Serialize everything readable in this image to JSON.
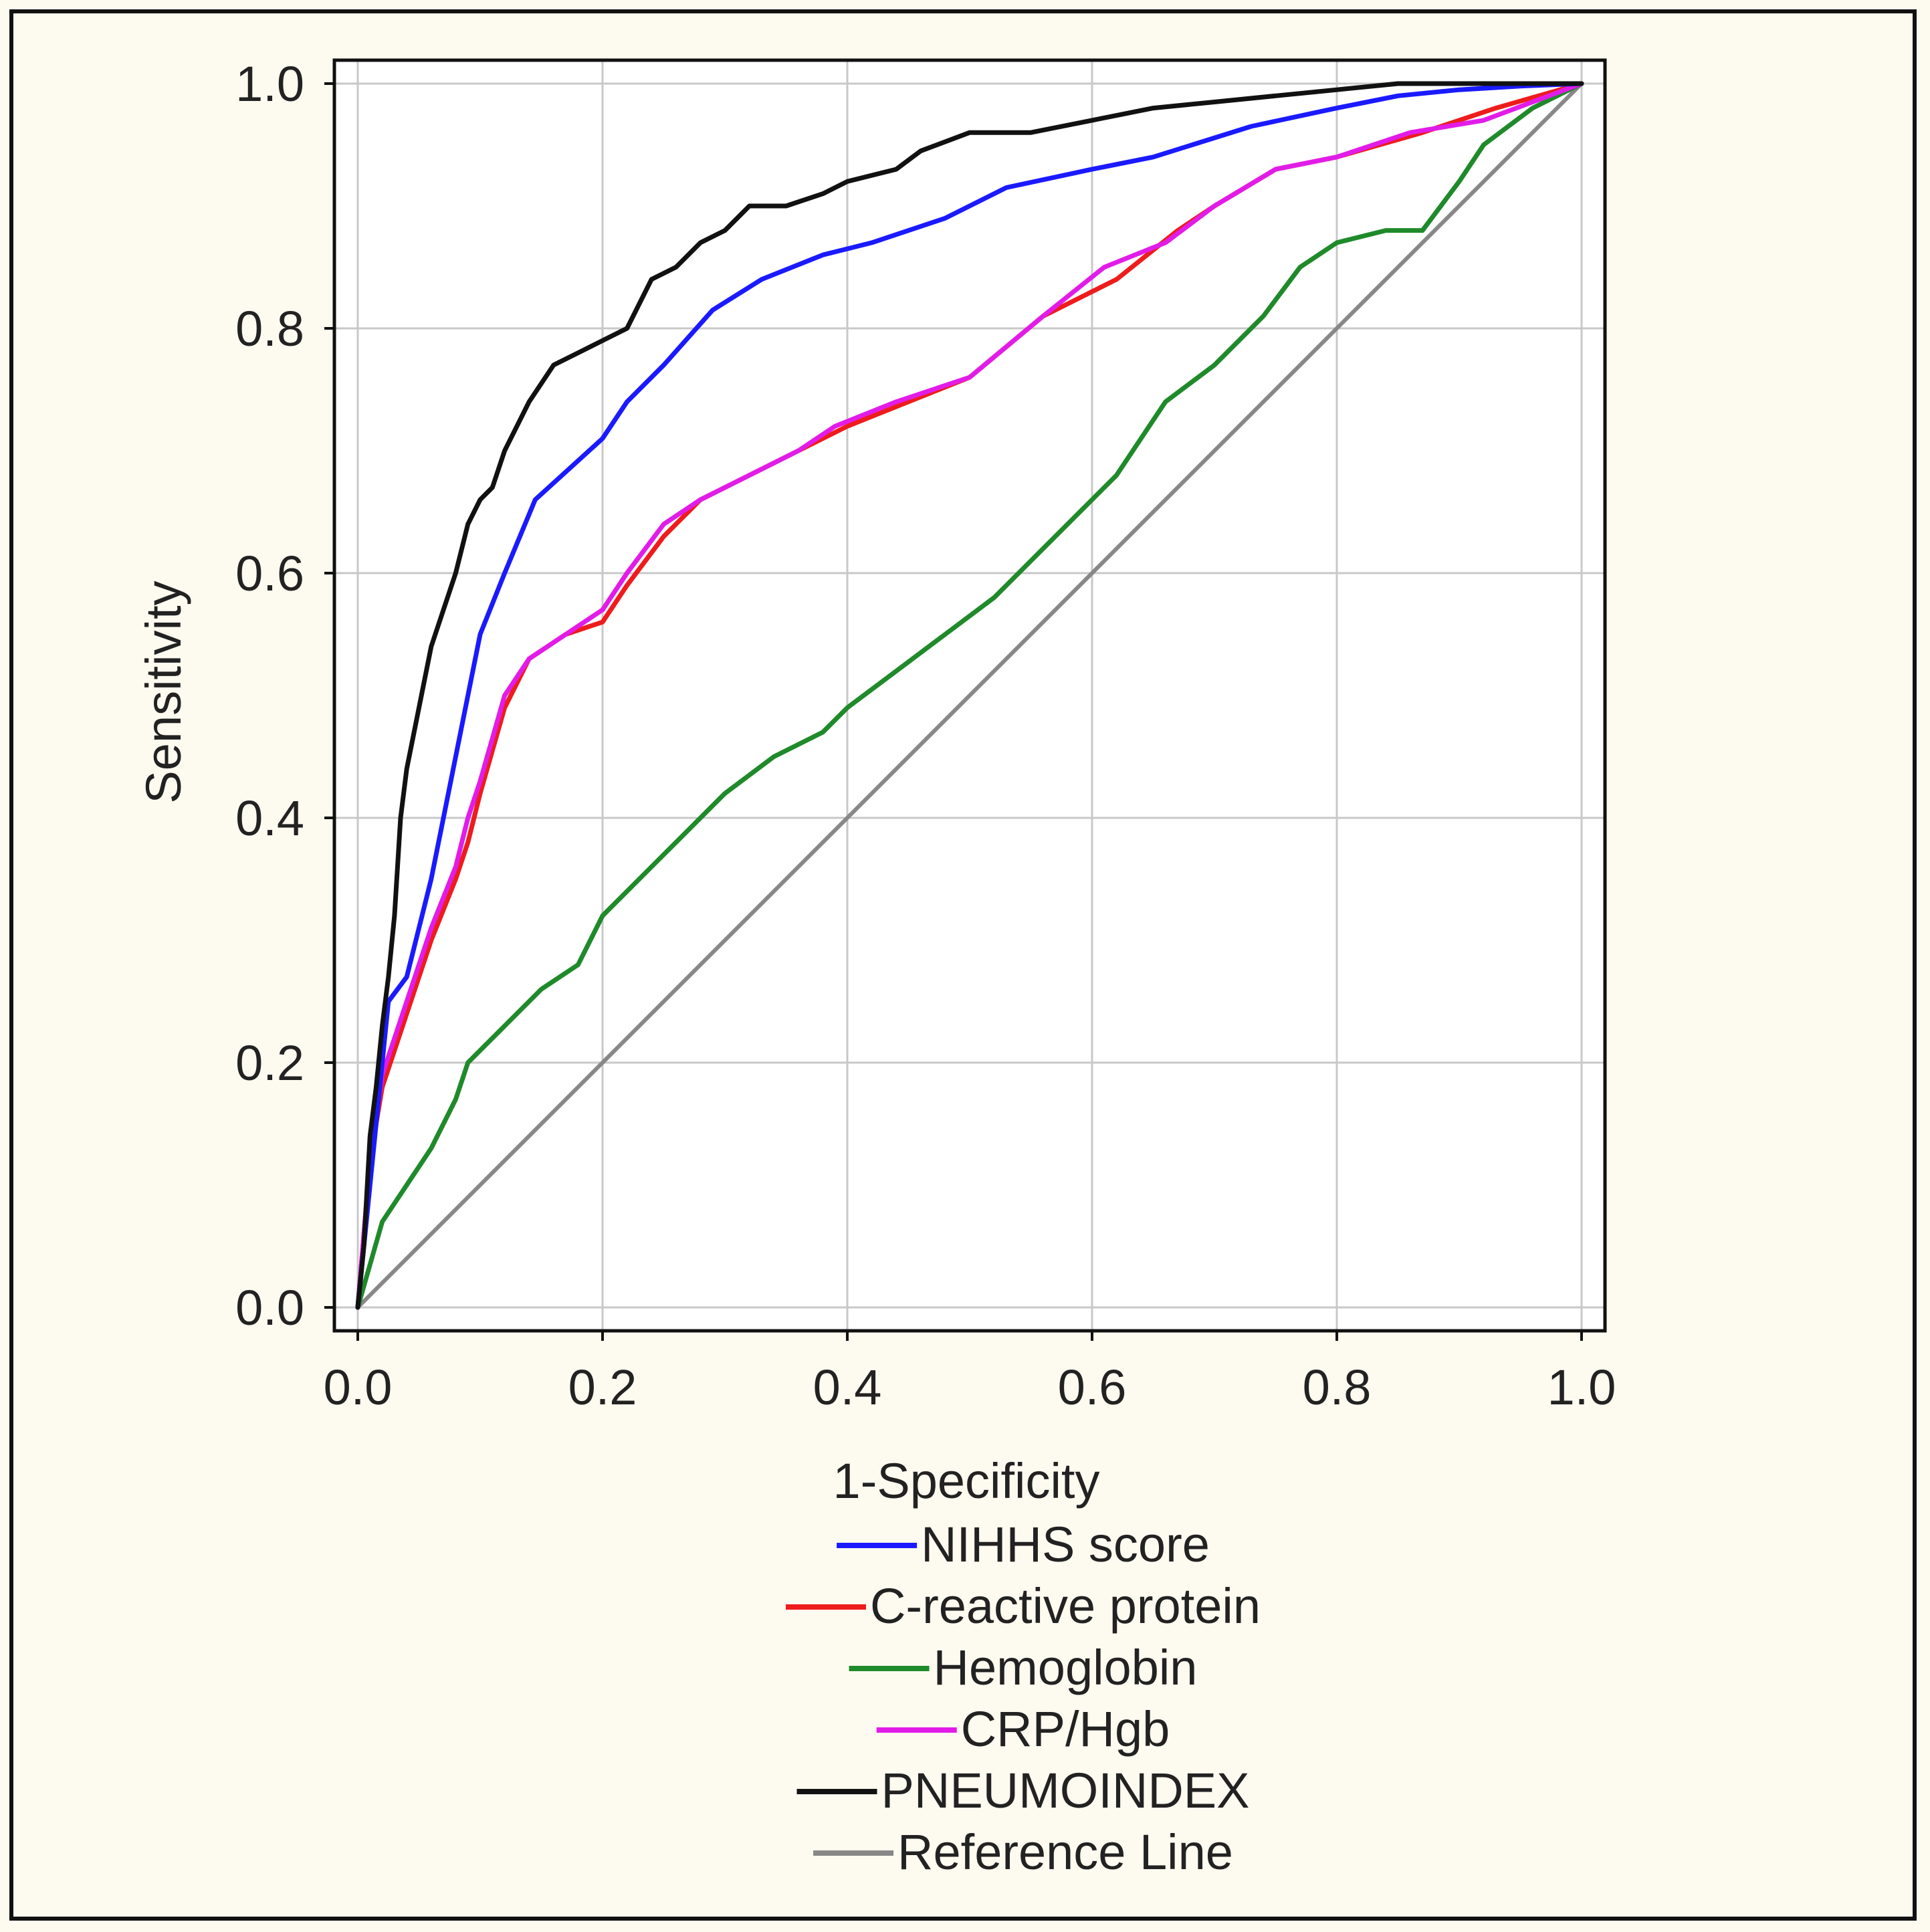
{
  "chart_data": {
    "type": "line",
    "title": "",
    "xlabel": "1-Specificity",
    "ylabel": "Sensitivity",
    "xlim": [
      0,
      1
    ],
    "ylim": [
      0,
      1
    ],
    "xticks": [
      "0.0",
      "0.2",
      "0.4",
      "0.6",
      "0.8",
      "1.0"
    ],
    "yticks": [
      "0.0",
      "0.2",
      "0.4",
      "0.6",
      "0.8",
      "1.0"
    ],
    "grid": true,
    "legend_position": "bottom-center",
    "series": [
      {
        "name": "NIHHS score",
        "color": "#1a1aff",
        "x": [
          0,
          0.01,
          0.02,
          0.025,
          0.04,
          0.06,
          0.08,
          0.1,
          0.12,
          0.145,
          0.2,
          0.22,
          0.25,
          0.29,
          0.33,
          0.38,
          0.42,
          0.48,
          0.53,
          0.6,
          0.65,
          0.73,
          0.8,
          0.85,
          0.9,
          0.95,
          1
        ],
        "y": [
          0,
          0.1,
          0.2,
          0.25,
          0.27,
          0.35,
          0.45,
          0.55,
          0.6,
          0.66,
          0.71,
          0.74,
          0.77,
          0.815,
          0.84,
          0.86,
          0.87,
          0.89,
          0.915,
          0.93,
          0.94,
          0.965,
          0.98,
          0.99,
          0.995,
          0.998,
          1
        ]
      },
      {
        "name": "C-reactive protein",
        "color": "#ee1c1c",
        "x": [
          0,
          0.01,
          0.02,
          0.04,
          0.06,
          0.08,
          0.09,
          0.1,
          0.12,
          0.14,
          0.17,
          0.2,
          0.22,
          0.25,
          0.28,
          0.32,
          0.36,
          0.4,
          0.45,
          0.5,
          0.56,
          0.62,
          0.67,
          0.7,
          0.75,
          0.8,
          0.87,
          0.93,
          1
        ],
        "y": [
          0,
          0.12,
          0.18,
          0.24,
          0.3,
          0.35,
          0.38,
          0.42,
          0.49,
          0.53,
          0.55,
          0.56,
          0.59,
          0.63,
          0.66,
          0.68,
          0.7,
          0.72,
          0.74,
          0.76,
          0.81,
          0.84,
          0.88,
          0.9,
          0.93,
          0.94,
          0.96,
          0.98,
          1
        ]
      },
      {
        "name": "Hemoglobin",
        "color": "#1f8a2a",
        "x": [
          0,
          0.02,
          0.04,
          0.06,
          0.08,
          0.09,
          0.12,
          0.15,
          0.18,
          0.2,
          0.24,
          0.26,
          0.3,
          0.34,
          0.38,
          0.4,
          0.44,
          0.48,
          0.52,
          0.56,
          0.6,
          0.62,
          0.66,
          0.7,
          0.74,
          0.77,
          0.8,
          0.84,
          0.87,
          0.9,
          0.92,
          0.96,
          1
        ],
        "y": [
          0,
          0.07,
          0.1,
          0.13,
          0.17,
          0.2,
          0.23,
          0.26,
          0.28,
          0.32,
          0.36,
          0.38,
          0.42,
          0.45,
          0.47,
          0.49,
          0.52,
          0.55,
          0.58,
          0.62,
          0.66,
          0.68,
          0.74,
          0.77,
          0.81,
          0.85,
          0.87,
          0.88,
          0.88,
          0.92,
          0.95,
          0.98,
          1
        ]
      },
      {
        "name": "CRP/Hgb",
        "color": "#e21ce8",
        "x": [
          0,
          0.01,
          0.02,
          0.04,
          0.06,
          0.08,
          0.09,
          0.1,
          0.12,
          0.14,
          0.17,
          0.2,
          0.22,
          0.25,
          0.28,
          0.32,
          0.36,
          0.39,
          0.44,
          0.5,
          0.56,
          0.61,
          0.66,
          0.7,
          0.75,
          0.8,
          0.86,
          0.92,
          1
        ],
        "y": [
          0,
          0.12,
          0.19,
          0.25,
          0.31,
          0.36,
          0.4,
          0.43,
          0.5,
          0.53,
          0.55,
          0.57,
          0.6,
          0.64,
          0.66,
          0.68,
          0.7,
          0.72,
          0.74,
          0.76,
          0.81,
          0.85,
          0.87,
          0.9,
          0.93,
          0.94,
          0.96,
          0.97,
          1
        ]
      },
      {
        "name": "PNEUMOINDEX",
        "color": "#111111",
        "x": [
          0,
          0.005,
          0.01,
          0.015,
          0.02,
          0.025,
          0.03,
          0.035,
          0.04,
          0.05,
          0.06,
          0.07,
          0.08,
          0.09,
          0.1,
          0.11,
          0.12,
          0.13,
          0.14,
          0.16,
          0.18,
          0.2,
          0.22,
          0.24,
          0.26,
          0.28,
          0.3,
          0.32,
          0.35,
          0.38,
          0.4,
          0.44,
          0.46,
          0.5,
          0.55,
          0.6,
          0.65,
          0.7,
          0.75,
          0.8,
          0.85,
          0.9,
          0.95,
          1
        ],
        "y": [
          0,
          0.05,
          0.14,
          0.18,
          0.23,
          0.27,
          0.32,
          0.4,
          0.44,
          0.49,
          0.54,
          0.57,
          0.6,
          0.64,
          0.66,
          0.67,
          0.7,
          0.72,
          0.74,
          0.77,
          0.78,
          0.79,
          0.8,
          0.84,
          0.85,
          0.87,
          0.88,
          0.9,
          0.9,
          0.91,
          0.92,
          0.93,
          0.945,
          0.96,
          0.96,
          0.97,
          0.98,
          0.985,
          0.99,
          0.995,
          1,
          1,
          1,
          1
        ]
      },
      {
        "name": "Reference Line",
        "color": "#888888",
        "x": [
          0,
          1
        ],
        "y": [
          0,
          1
        ]
      }
    ]
  },
  "colors": {
    "background": "#fdfaf0",
    "plot_background": "#ffffff",
    "grid": "#c8c8c8",
    "axis": "#111111"
  }
}
